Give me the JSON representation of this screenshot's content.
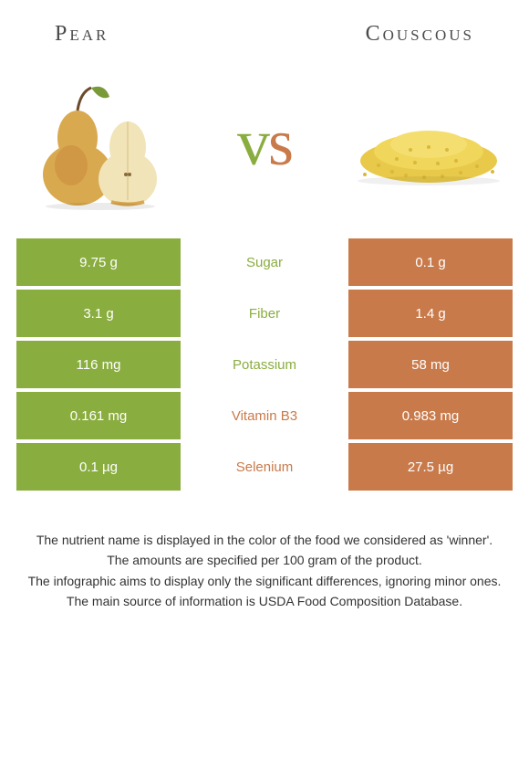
{
  "header": {
    "left": "Pear",
    "right": "Couscous"
  },
  "vs": {
    "v": "v",
    "s": "s"
  },
  "colors": {
    "left": "#8aad3f",
    "right": "#c97a4a",
    "background": "#ffffff",
    "text": "#333333"
  },
  "rows": [
    {
      "left": "9.75 g",
      "label": "Sugar",
      "right": "0.1 g",
      "winner": "left"
    },
    {
      "left": "3.1 g",
      "label": "Fiber",
      "right": "1.4 g",
      "winner": "left"
    },
    {
      "left": "116 mg",
      "label": "Potassium",
      "right": "58 mg",
      "winner": "left"
    },
    {
      "left": "0.161 mg",
      "label": "Vitamin B3",
      "right": "0.983 mg",
      "winner": "right"
    },
    {
      "left": "0.1 µg",
      "label": "Selenium",
      "right": "27.5 µg",
      "winner": "right"
    }
  ],
  "footer": [
    "The nutrient name is displayed in the color of the food we considered as 'winner'.",
    "The amounts are specified per 100 gram of the product.",
    "The infographic aims to display only the significant differences, ignoring minor ones.",
    "The main source of information is USDA Food Composition Database."
  ],
  "fonts": {
    "header_size": 24,
    "vs_size": 72,
    "row_size": 15,
    "footer_size": 14
  }
}
